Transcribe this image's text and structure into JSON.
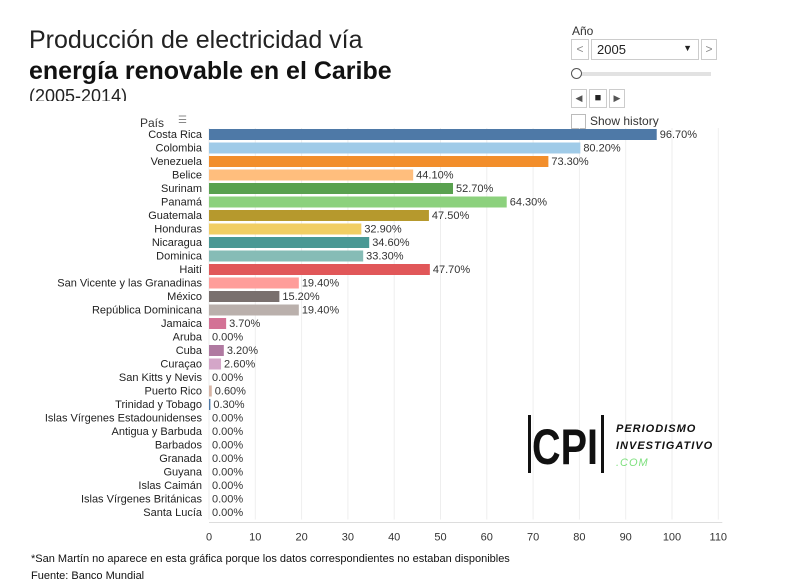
{
  "title": {
    "line1": "Producción de electricidad vía",
    "line2": "energía renovable en el Caribe",
    "line3": "(2005-2014)"
  },
  "controls": {
    "label": "Año",
    "selected_year": "2005",
    "prev": "<",
    "next": ">",
    "show_history": "Show history",
    "slider_level": 0
  },
  "logo": {
    "mark": "CPI",
    "line1": "PERIODISMO",
    "line2": "INVESTIGATIVO",
    "line3": ".COM"
  },
  "footer": {
    "note": "*San Martín no aparece en esta gráfica porque los datos correspondientes no estaban disponibles",
    "source": "Fuente: Banco Mundial"
  },
  "chart_data": {
    "type": "bar",
    "orientation": "horizontal",
    "ylabel": "País",
    "xlim": [
      0,
      110
    ],
    "xticks": [
      0,
      10,
      20,
      30,
      40,
      50,
      60,
      70,
      80,
      90,
      100,
      110
    ],
    "grid": true,
    "categories": [
      "Costa Rica",
      "Colombia",
      "Venezuela",
      "Belice",
      "Surinam",
      "Panamá",
      "Guatemala",
      "Honduras",
      "Nicaragua",
      "Dominica",
      "Haití",
      "San Vicente y las Granadinas",
      "México",
      "República Dominicana",
      "Jamaica",
      "Aruba",
      "Cuba",
      "Curaçao",
      "San Kitts y Nevis",
      "Puerto Rico",
      "Trinidad y Tobago",
      "Islas Vírgenes Estadounidenses",
      "Antigua y Barbuda",
      "Barbados",
      "Granada",
      "Guyana",
      "Islas Caimán",
      "Islas Vírgenes Británicas",
      "Santa Lucía"
    ],
    "values": [
      96.7,
      80.2,
      73.3,
      44.1,
      52.7,
      64.3,
      47.5,
      32.9,
      34.6,
      33.3,
      47.7,
      19.4,
      15.2,
      19.4,
      3.7,
      0,
      3.2,
      2.6,
      0,
      0.6,
      0.3,
      0,
      0,
      0,
      0,
      0,
      0,
      0,
      0
    ],
    "labels": [
      "96.70%",
      "80.20%",
      "73.30%",
      "44.10%",
      "52.70%",
      "64.30%",
      "47.50%",
      "32.90%",
      "34.60%",
      "33.30%",
      "47.70%",
      "19.40%",
      "15.20%",
      "19.40%",
      "3.70%",
      "0.00%",
      "3.20%",
      "2.60%",
      "0.00%",
      "0.60%",
      "0.30%",
      "0.00%",
      "0.00%",
      "0.00%",
      "0.00%",
      "0.00%",
      "0.00%",
      "0.00%",
      "0.00%"
    ],
    "colors": [
      "#4e79a7",
      "#a0cbe8",
      "#f28e2b",
      "#ffbe7d",
      "#59a14f",
      "#8cd17d",
      "#b6992d",
      "#f1ce63",
      "#499894",
      "#86bcb6",
      "#e15759",
      "#ff9d9a",
      "#79706e",
      "#bab0ac",
      "#d37295",
      "#fabfd2",
      "#b07aa1",
      "#d4a6c8",
      "#9d7660",
      "#d7b5a6",
      "#4e79a7",
      "#a0cbe8",
      "#f28e2b",
      "#ffbe7d",
      "#59a14f",
      "#8cd17d",
      "#b6992d",
      "#f1ce63",
      "#499894"
    ]
  }
}
